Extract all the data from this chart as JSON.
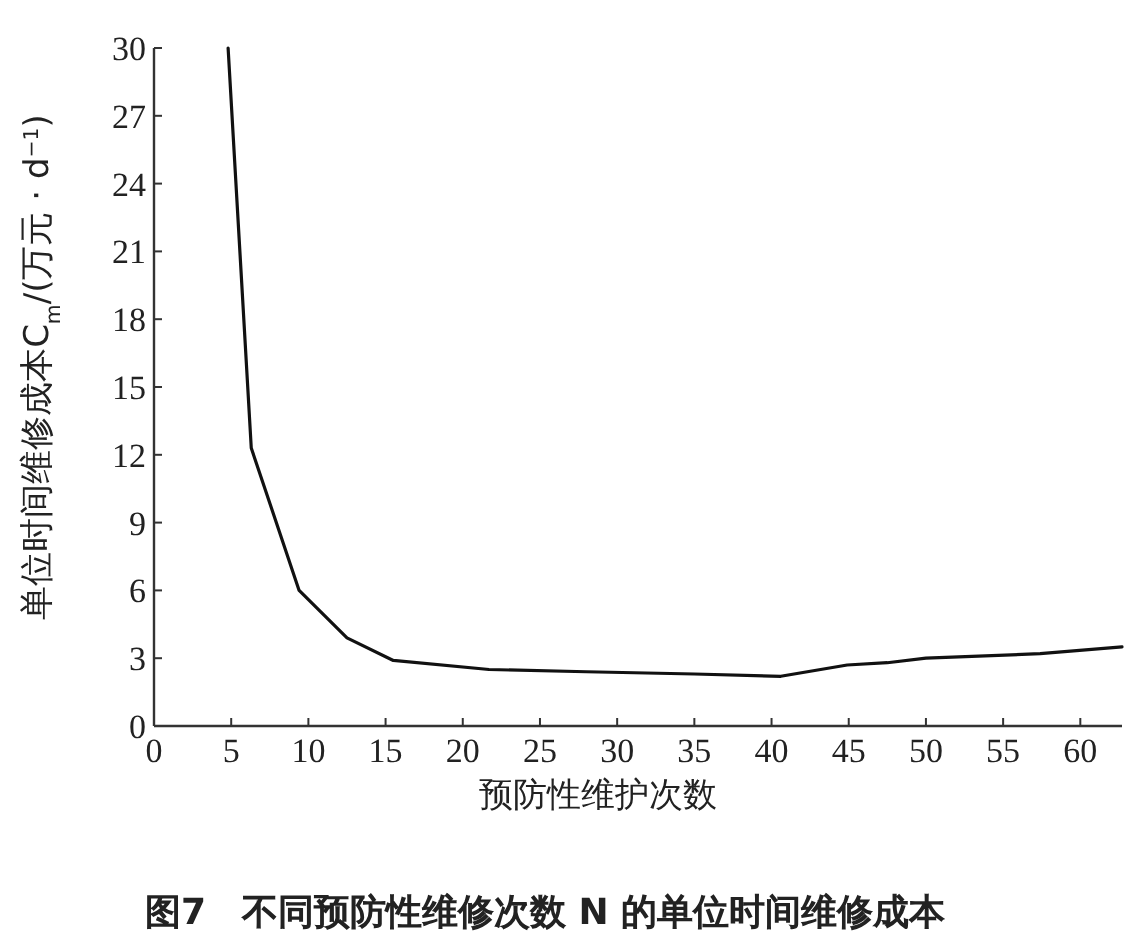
{
  "chart_data": {
    "type": "line",
    "title": "图7　不同预防性维修次数 N 的单位时间维修成本",
    "xlabel": "预防性维护次数",
    "ylabel": "单位时间维修成本C$_{m}$/(万元 · d$^{−1}$)",
    "x": [
      4.8,
      6.3,
      9.4,
      12.5,
      15.5,
      21.7,
      28,
      35,
      40.6,
      44.9,
      47.5,
      50,
      57.4,
      62.7
    ],
    "series": [
      {
        "color": "#111111",
        "values": [
          30,
          12.3,
          6.0,
          3.9,
          2.9,
          2.5,
          2.4,
          2.3,
          2.2,
          2.7,
          2.8,
          3.0,
          3.2,
          3.5
        ]
      }
    ],
    "xlim": [
      0,
      62.7
    ],
    "xticks": [
      0,
      5,
      10,
      15,
      20,
      25,
      30,
      35,
      40,
      45,
      50,
      55,
      60
    ],
    "ylim": [
      0,
      30
    ],
    "yticks": [
      0,
      3,
      6,
      9,
      12,
      15,
      18,
      21,
      24,
      27,
      30
    ],
    "grid": false,
    "marker": "none",
    "line_style": "solid"
  }
}
